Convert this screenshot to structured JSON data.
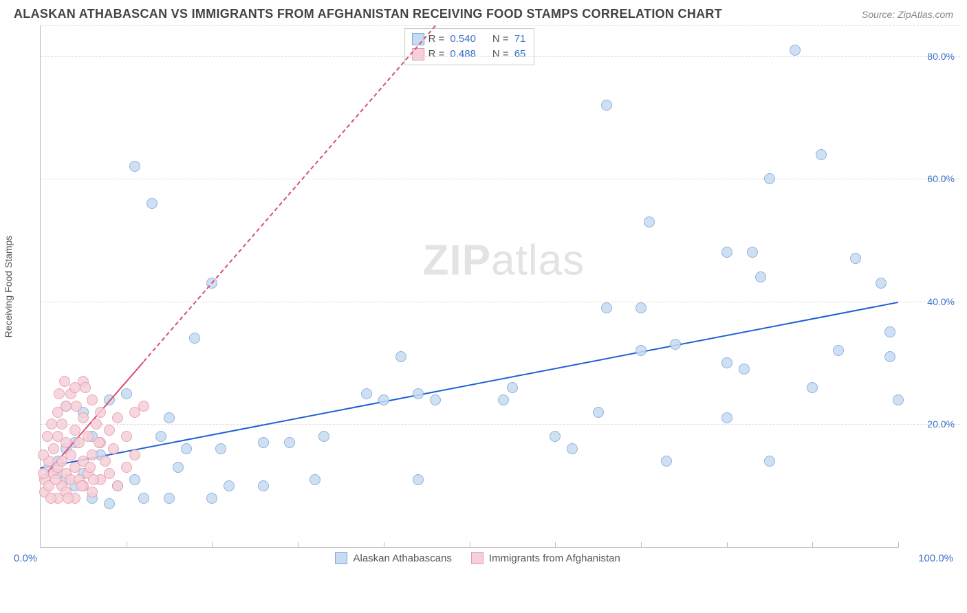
{
  "title": "ALASKAN ATHABASCAN VS IMMIGRANTS FROM AFGHANISTAN RECEIVING FOOD STAMPS CORRELATION CHART",
  "source": "Source: ZipAtlas.com",
  "y_axis_label": "Receiving Food Stamps",
  "watermark_a": "ZIP",
  "watermark_b": "atlas",
  "plot": {
    "xlim": [
      0,
      100
    ],
    "ylim": [
      0,
      85
    ],
    "y_ticks": [
      20,
      40,
      60,
      80
    ],
    "y_tick_labels": [
      "20.0%",
      "40.0%",
      "60.0%",
      "80.0%"
    ],
    "x_ticks": [
      10,
      20,
      30,
      40,
      50,
      60,
      70,
      80,
      90,
      100
    ],
    "background_color": "#ffffff",
    "grid_color": "#dddddd",
    "axis_color": "#bbbbbb"
  },
  "x_axis": {
    "min_label": "0.0%",
    "max_label": "100.0%"
  },
  "series": [
    {
      "name": "Alaskan Athabascans",
      "color_fill": "#c7dbf2",
      "color_stroke": "#7ba7d9",
      "marker_size": 16,
      "trend": {
        "x1": 0,
        "y1": 13,
        "x2": 100,
        "y2": 40,
        "color": "#1f60d6",
        "width": 2.5,
        "dash": "solid"
      },
      "points": [
        [
          1,
          13
        ],
        [
          2,
          14
        ],
        [
          2,
          12
        ],
        [
          3,
          11
        ],
        [
          3,
          16
        ],
        [
          4,
          10
        ],
        [
          4,
          17
        ],
        [
          5,
          12
        ],
        [
          6,
          18
        ],
        [
          7,
          15
        ],
        [
          3,
          23
        ],
        [
          5,
          22
        ],
        [
          8,
          24
        ],
        [
          10,
          25
        ],
        [
          11,
          62
        ],
        [
          13,
          56
        ],
        [
          18,
          34
        ],
        [
          16,
          13
        ],
        [
          20,
          43
        ],
        [
          20,
          8
        ],
        [
          22,
          10
        ],
        [
          21,
          16
        ],
        [
          26,
          10
        ],
        [
          26,
          17
        ],
        [
          29,
          17
        ],
        [
          32,
          11
        ],
        [
          33,
          18
        ],
        [
          38,
          25
        ],
        [
          40,
          24
        ],
        [
          42,
          31
        ],
        [
          44,
          11
        ],
        [
          44,
          25
        ],
        [
          46,
          24
        ],
        [
          54,
          24
        ],
        [
          55,
          26
        ],
        [
          62,
          16
        ],
        [
          60,
          18
        ],
        [
          65,
          22
        ],
        [
          66,
          72
        ],
        [
          66,
          39
        ],
        [
          70,
          39
        ],
        [
          70,
          32
        ],
        [
          71,
          53
        ],
        [
          73,
          14
        ],
        [
          74,
          33
        ],
        [
          80,
          30
        ],
        [
          80,
          21
        ],
        [
          82,
          29
        ],
        [
          80,
          48
        ],
        [
          83,
          48
        ],
        [
          84,
          44
        ],
        [
          85,
          14
        ],
        [
          85,
          60
        ],
        [
          90,
          26
        ],
        [
          91,
          64
        ],
        [
          88,
          81
        ],
        [
          93,
          32
        ],
        [
          95,
          47
        ],
        [
          98,
          43
        ],
        [
          99,
          31
        ],
        [
          99,
          35
        ],
        [
          100,
          24
        ],
        [
          6,
          8
        ],
        [
          8,
          7
        ],
        [
          12,
          8
        ],
        [
          15,
          8
        ],
        [
          14,
          18
        ],
        [
          15,
          21
        ],
        [
          17,
          16
        ],
        [
          9,
          10
        ],
        [
          11,
          11
        ]
      ]
    },
    {
      "name": "Immigrants from Afghanistan",
      "color_fill": "#f6d0d8",
      "color_stroke": "#e39aad",
      "marker_size": 16,
      "trend": {
        "x1": 0,
        "y1": 11,
        "x2": 46,
        "y2": 85,
        "color": "#d94f70",
        "width": 2,
        "dash": "dashed",
        "solid_until_x": 12
      },
      "points": [
        [
          0.5,
          9
        ],
        [
          0.5,
          11
        ],
        [
          1,
          10
        ],
        [
          1,
          14
        ],
        [
          1.5,
          12
        ],
        [
          1.5,
          16
        ],
        [
          2,
          8
        ],
        [
          2,
          13
        ],
        [
          2,
          18
        ],
        [
          2,
          22
        ],
        [
          2.5,
          10
        ],
        [
          2.5,
          14
        ],
        [
          2.5,
          20
        ],
        [
          3,
          9
        ],
        [
          3,
          12
        ],
        [
          3,
          17
        ],
        [
          3,
          23
        ],
        [
          3.5,
          11
        ],
        [
          3.5,
          15
        ],
        [
          3.5,
          25
        ],
        [
          4,
          8
        ],
        [
          4,
          13
        ],
        [
          4,
          19
        ],
        [
          4,
          26
        ],
        [
          4.5,
          11
        ],
        [
          4.5,
          17
        ],
        [
          5,
          10
        ],
        [
          5,
          14
        ],
        [
          5,
          21
        ],
        [
          5,
          27
        ],
        [
          5.5,
          12
        ],
        [
          5.5,
          18
        ],
        [
          6,
          9
        ],
        [
          6,
          15
        ],
        [
          6,
          24
        ],
        [
          6.5,
          20
        ],
        [
          7,
          11
        ],
        [
          7,
          17
        ],
        [
          7,
          22
        ],
        [
          7.5,
          14
        ],
        [
          8,
          19
        ],
        [
          8,
          12
        ],
        [
          8.5,
          16
        ],
        [
          9,
          10
        ],
        [
          9,
          21
        ],
        [
          10,
          18
        ],
        [
          10,
          13
        ],
        [
          11,
          15
        ],
        [
          11,
          22
        ],
        [
          12,
          23
        ],
        [
          0.3,
          12
        ],
        [
          0.3,
          15
        ],
        [
          0.8,
          18
        ],
        [
          1.2,
          8
        ],
        [
          1.8,
          11
        ],
        [
          1.3,
          20
        ],
        [
          2.2,
          25
        ],
        [
          2.8,
          27
        ],
        [
          3.2,
          8
        ],
        [
          4.2,
          23
        ],
        [
          4.8,
          10
        ],
        [
          5.2,
          26
        ],
        [
          5.8,
          13
        ],
        [
          6.2,
          11
        ],
        [
          6.8,
          17
        ]
      ]
    }
  ],
  "stats_legend": [
    {
      "swatch_fill": "#c7dbf2",
      "swatch_stroke": "#7ba7d9",
      "r": "0.540",
      "n": "71"
    },
    {
      "swatch_fill": "#f6d0d8",
      "swatch_stroke": "#e39aad",
      "r": "0.488",
      "n": "65"
    }
  ],
  "labels": {
    "r_prefix": "R =",
    "n_prefix": "N ="
  }
}
